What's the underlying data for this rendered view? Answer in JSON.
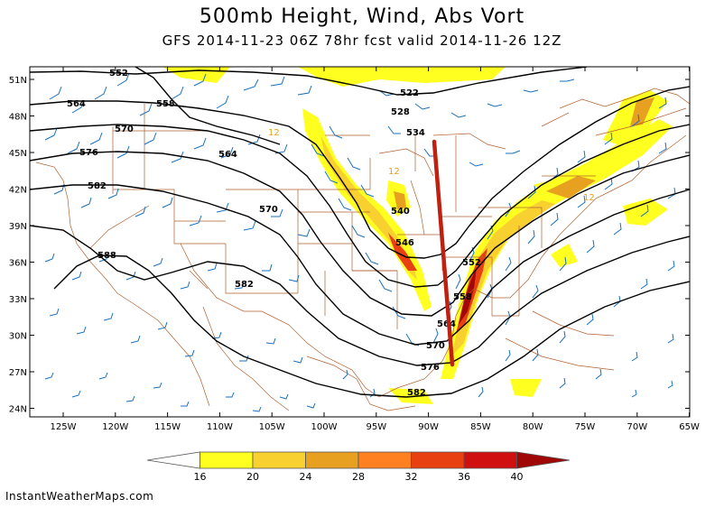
{
  "title": "500mb Height, Wind, Abs Vort",
  "subtitle": "GFS 2014-11-23 06Z 78hr fcst valid 2014-11-26 12Z",
  "lat_labels": [
    "51N",
    "48N",
    "45N",
    "42N",
    "39N",
    "36N",
    "33N",
    "30N",
    "27N",
    "24N"
  ],
  "lon_labels": [
    "125W",
    "120W",
    "115W",
    "110W",
    "105W",
    "100W",
    "95W",
    "90W",
    "85W",
    "80W",
    "75W",
    "70W",
    "65W"
  ],
  "contour_labels": [
    "552",
    "564",
    "558",
    "570",
    "576",
    "564",
    "582",
    "570",
    "588",
    "582",
    "522",
    "528",
    "534",
    "540",
    "546",
    "552",
    "558",
    "564",
    "570",
    "576",
    "582",
    "12",
    "12",
    "12"
  ],
  "colorbar": {
    "ticks": [
      "16",
      "20",
      "24",
      "28",
      "32",
      "36",
      "40"
    ],
    "colors": [
      "#ffffff",
      "#ffff20",
      "#f8d030",
      "#e8a020",
      "#ff8020",
      "#e84010",
      "#d01010",
      "#a00808"
    ]
  },
  "credit": "InstantWeatherMaps.com",
  "colors": {
    "coast": "#b06030",
    "wind": "#1870c0",
    "contour": "#000000",
    "trough_axis": "#c02010"
  }
}
